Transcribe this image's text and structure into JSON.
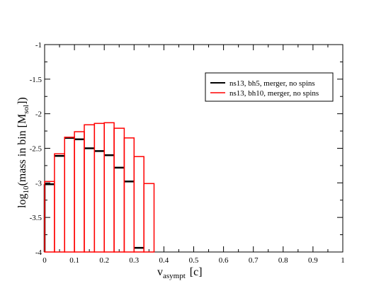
{
  "chart_data": {
    "type": "histogram-step",
    "xlabel": {
      "main": "v",
      "sub": "asympt",
      "unit": "[c]"
    },
    "ylabel": {
      "pre": "log",
      "sub10": "10",
      "mid": "(mass in bin [M",
      "subsol": "sol",
      "post": "])"
    },
    "xlim": [
      0,
      1
    ],
    "ylim": [
      -4,
      -1
    ],
    "xticks": [
      0,
      0.1,
      0.2,
      0.3,
      0.4,
      0.5,
      0.6,
      0.7,
      0.8,
      0.9,
      1
    ],
    "xtick_labels": [
      "0",
      "0.1",
      "0.2",
      "0.3",
      "0.4",
      "0.5",
      "0.6",
      "0.7",
      "0.8",
      "0.9",
      "1"
    ],
    "yticks": [
      -4,
      -3.5,
      -3,
      -2.5,
      -2,
      -1.5,
      -1
    ],
    "ytick_labels": [
      "-4",
      "-3.5",
      "-3",
      "-2.5",
      "-2",
      "-1.5",
      "-1"
    ],
    "bin_edges": [
      0,
      0.033,
      0.067,
      0.1,
      0.133,
      0.167,
      0.2,
      0.233,
      0.267,
      0.3,
      0.333,
      0.367
    ],
    "legend_position": "top-right",
    "series": [
      {
        "name": "ns13, bh10, merger, no spins",
        "color": "#ff0000",
        "values": [
          -2.98,
          -2.58,
          -2.34,
          -2.26,
          -2.16,
          -2.14,
          -2.13,
          -2.21,
          -2.35,
          -2.62,
          -3.01
        ]
      },
      {
        "name": "ns13,   bh5, merger, no spins",
        "color": "#000000",
        "values": [
          -3.02,
          -2.61,
          -2.35,
          -2.37,
          -2.5,
          -2.54,
          -2.6,
          -2.78,
          -2.98,
          -3.94,
          null
        ]
      }
    ]
  }
}
